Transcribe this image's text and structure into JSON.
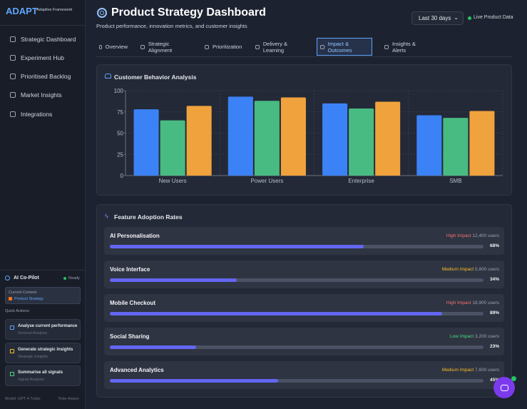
{
  "sidebar": {
    "brand": "ADAPT",
    "brand_subtitle": "Adaptive Framework",
    "nav": [
      "Strategic Dashboard",
      "Experiment Hub",
      "Prioritised Backlog",
      "Market Insights",
      "Integrations"
    ],
    "copilot": {
      "title": "AI Co-Pilot",
      "status": "Ready",
      "context_label": "Current Context:",
      "context_value": "Product Strategy",
      "quick_actions_label": "Quick Actions:",
      "actions": [
        {
          "title": "Analyse current performance",
          "subtitle": "General Analysis"
        },
        {
          "title": "Generate strategic insights",
          "subtitle": "Strategic Insights"
        },
        {
          "title": "Summarise all signals",
          "subtitle": "Signal Analysis"
        }
      ],
      "model": "Model: GPT-4 Turbo",
      "role": "Role-Aware"
    }
  },
  "header": {
    "title": "Product Strategy Dashboard",
    "subtitle": "Product performance, innovation metrics, and customer insights",
    "period": "Last 30 days",
    "live": "Live Product Data"
  },
  "tabs": [
    "Overview",
    "Strategic Alignment",
    "Prioritization",
    "Delivery & Learning",
    "Impact & Outcomes",
    "Insights & Alerts"
  ],
  "active_tab": 4,
  "chart_data": {
    "type": "bar",
    "title": "Customer Behavior Analysis",
    "categories": [
      "New Users",
      "Power Users",
      "Enterprise",
      "SMB"
    ],
    "series": [
      {
        "color": "#3b82f6",
        "values": [
          78,
          93,
          85,
          71
        ]
      },
      {
        "color": "#48bb82",
        "values": [
          65,
          88,
          79,
          68
        ]
      },
      {
        "color": "#f0a23c",
        "values": [
          82,
          92,
          87,
          76
        ]
      }
    ],
    "ylim": [
      0,
      100
    ],
    "yticks": [
      0,
      25,
      50,
      75,
      100
    ],
    "grid": true
  },
  "adoption": {
    "title": "Feature Adoption Rates",
    "features": [
      {
        "name": "AI Personalisation",
        "impact": "High Impact",
        "impact_color": "#f87171",
        "users": "12,400 users",
        "value": 68,
        "value_label": "68%"
      },
      {
        "name": "Voice Interface",
        "impact": "Medium Impact",
        "impact_color": "#fbbf24",
        "users": "5,800 users",
        "value": 34,
        "value_label": "34%"
      },
      {
        "name": "Mobile Checkout",
        "impact": "High Impact",
        "impact_color": "#f87171",
        "users": "18,900 users",
        "value": 89,
        "value_label": "89%"
      },
      {
        "name": "Social Sharing",
        "impact": "Low Impact",
        "impact_color": "#4ade80",
        "users": "3,200 users",
        "value": 23,
        "value_label": "23%"
      },
      {
        "name": "Advanced Analytics",
        "impact": "Medium Impact",
        "impact_color": "#fbbf24",
        "users": "7,600 users",
        "value": 45,
        "value_label": "45%"
      }
    ]
  }
}
